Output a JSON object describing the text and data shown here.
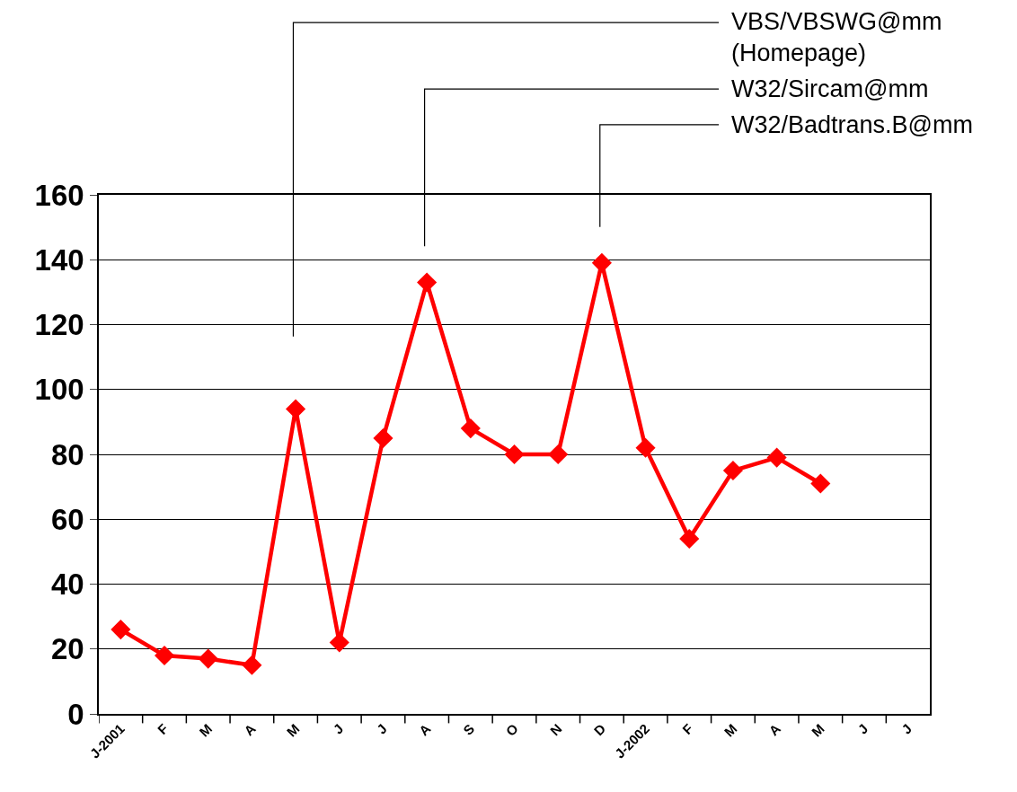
{
  "chart_data": {
    "type": "line",
    "categories": [
      "J-2001",
      "F",
      "M",
      "A",
      "M",
      "J",
      "J",
      "A",
      "S",
      "O",
      "N",
      "D",
      "J-2002",
      "F",
      "M",
      "A",
      "M",
      "J",
      "J"
    ],
    "series": [
      {
        "color": "#ff0000",
        "values": [
          26,
          18,
          17,
          15,
          94,
          22,
          85,
          133,
          88,
          80,
          80,
          139,
          82,
          54,
          75,
          79,
          71,
          null,
          null
        ]
      }
    ],
    "ylim": [
      0,
      160
    ],
    "yticks": [
      0,
      20,
      40,
      60,
      80,
      100,
      120,
      140,
      160
    ],
    "grid": "y",
    "marker": "diamond",
    "line_style": "solid",
    "annotations": [
      "VBS/VBSWG@mm\n(Homepage)",
      "W32/Sircam@mm",
      "W32/Badtrans.B@mm"
    ]
  }
}
